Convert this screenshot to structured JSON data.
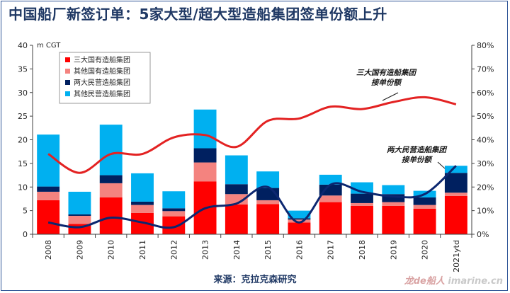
{
  "title": "中国船厂新签订单：5家大型/超大型造船集团签单份额上升",
  "source": "来源：克拉克森研究",
  "watermark": {
    "brand": "龙de船人",
    "site": "imarine.cn"
  },
  "colors": {
    "state_big3": "#ff0000",
    "state_other": "#f4837f",
    "private_big2": "#002060",
    "private_other": "#00b0f0",
    "line_state": "#e32222",
    "line_private": "#0c2770"
  },
  "chart_data": {
    "type": "bar",
    "stacked": true,
    "categories": [
      "2008",
      "2009",
      "2010",
      "2011",
      "2012",
      "2013",
      "2014",
      "2015",
      "2016",
      "2017",
      "2018",
      "2019",
      "2020",
      "2021ytd"
    ],
    "y_left": {
      "unit": "m CGT",
      "min": 0,
      "max": 40,
      "ticks": [
        0,
        5,
        10,
        15,
        20,
        25,
        30,
        35,
        40
      ]
    },
    "y_right": {
      "min": 0,
      "max": 80,
      "ticks": [
        "0%",
        "10%",
        "20%",
        "30%",
        "40%",
        "50%",
        "60%",
        "70%",
        "80%"
      ]
    },
    "grid": false,
    "legend_position": "top-left",
    "series": [
      {
        "name": "三大国有造船集团",
        "color": "#ff0000",
        "values": [
          7.2,
          2.2,
          7.8,
          4.5,
          3.8,
          11.2,
          6.3,
          6.4,
          2.5,
          6.8,
          6.0,
          6.0,
          5.4,
          8.1
        ]
      },
      {
        "name": "其他国有造船集团",
        "color": "#f4837f",
        "values": [
          1.8,
          1.7,
          3.0,
          1.7,
          1.1,
          4.0,
          2.2,
          0.8,
          0.6,
          1.4,
          0.6,
          0.8,
          0.8,
          0.7
        ]
      },
      {
        "name": "两大民营造船集团",
        "color": "#002060",
        "values": [
          1.1,
          0.3,
          1.7,
          0.7,
          0.6,
          3.0,
          2.1,
          2.6,
          0.3,
          2.3,
          2.0,
          1.7,
          1.6,
          4.2
        ]
      },
      {
        "name": "其他民营造船集团",
        "color": "#00b0f0",
        "values": [
          11.0,
          4.8,
          10.7,
          6.0,
          3.6,
          8.2,
          6.1,
          3.5,
          1.6,
          2.1,
          2.4,
          1.9,
          1.4,
          1.5
        ]
      }
    ],
    "lines": [
      {
        "label": "三大国有造船集团\n接单份额",
        "color": "#e32222",
        "values": [
          34,
          26,
          34,
          34,
          41,
          42,
          37,
          48,
          49,
          54,
          53,
          56,
          58,
          55
        ]
      },
      {
        "label": "两大民营造船集团\n接单份额",
        "color": "#0c2770",
        "values": [
          5,
          3,
          7,
          5,
          3,
          11,
          13,
          20,
          5,
          21,
          18,
          16,
          17,
          29
        ]
      }
    ]
  }
}
